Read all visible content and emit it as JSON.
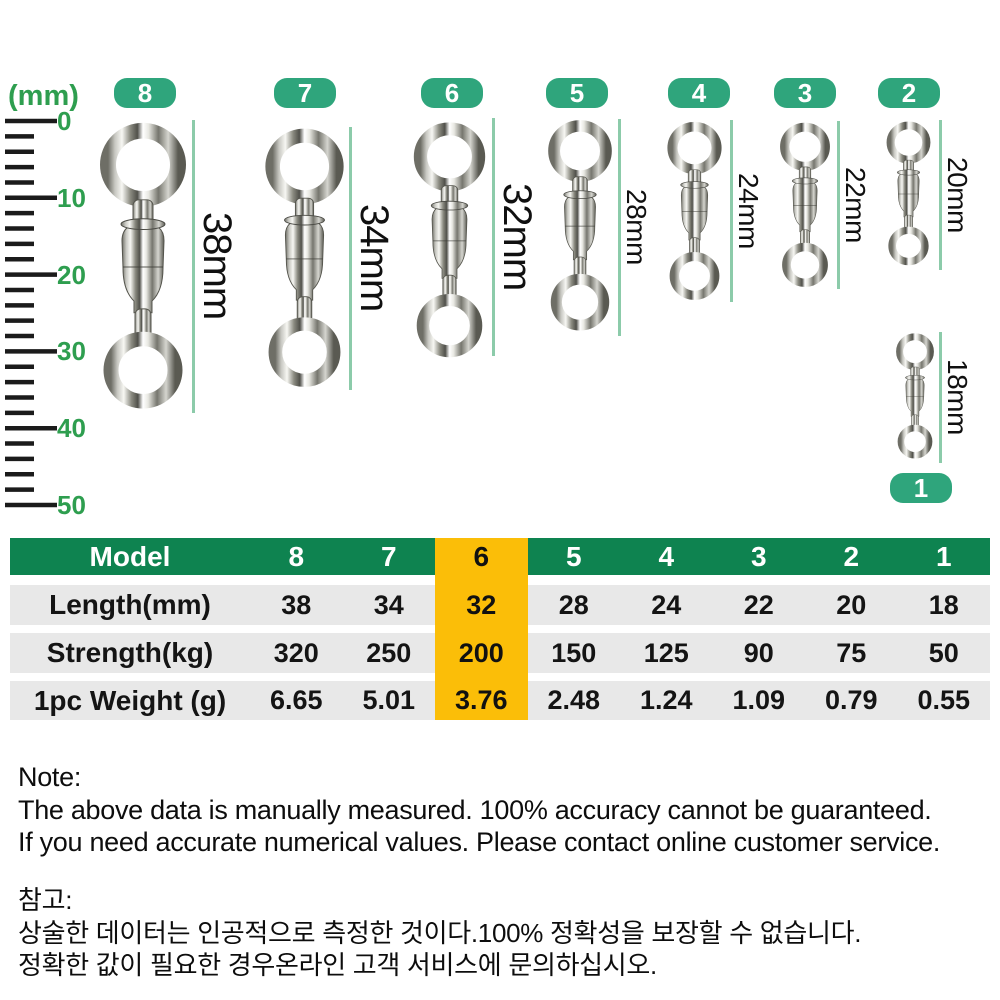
{
  "ruler": {
    "unit_label": "(mm)",
    "ticks": [
      "0",
      "10",
      "20",
      "30",
      "40",
      "50"
    ]
  },
  "sizes": [
    {
      "model": "8",
      "length_label": "38mm"
    },
    {
      "model": "7",
      "length_label": "34mm"
    },
    {
      "model": "6",
      "length_label": "32mm"
    },
    {
      "model": "5",
      "length_label": "28mm"
    },
    {
      "model": "4",
      "length_label": "24mm"
    },
    {
      "model": "3",
      "length_label": "22mm"
    },
    {
      "model": "2",
      "length_label": "20mm"
    },
    {
      "model": "1",
      "length_label": "18mm"
    }
  ],
  "table": {
    "header_label": "Model",
    "models": [
      "8",
      "7",
      "6",
      "5",
      "4",
      "3",
      "2",
      "1"
    ],
    "highlighted_model": "6",
    "rows": [
      {
        "label": "Length(mm)",
        "values": [
          "38",
          "34",
          "32",
          "28",
          "24",
          "22",
          "20",
          "18"
        ]
      },
      {
        "label": "Strength(kg)",
        "values": [
          "320",
          "250",
          "200",
          "150",
          "125",
          "90",
          "75",
          "50"
        ]
      },
      {
        "label": "1pc Weight (g)",
        "values": [
          "6.65",
          "5.01",
          "3.76",
          "2.48",
          "1.24",
          "1.09",
          "0.79",
          "0.55"
        ]
      }
    ]
  },
  "note_en": {
    "title": "Note:",
    "lines": [
      "The above data is manually measured. 100% accuracy cannot be guaranteed.",
      "If you need accurate numerical values. Please contact online customer service."
    ]
  },
  "note_ko": {
    "title": "참고:",
    "lines": [
      "상술한 데이터는 인공적으로 측정한 것이다.100% 정확성을 보장할 수 없습니다.",
      "정확한 값이 필요한 경우온라인 고객 서비스에 문의하십시오."
    ]
  },
  "colors": {
    "badge_green": "#2FA57C",
    "header_green": "#0E8350",
    "highlight_yellow": "#FBBE08",
    "row_gray": "#E8E8E8",
    "ruler_green": "#2E9E4F",
    "line_green": "#8CCBAA"
  }
}
